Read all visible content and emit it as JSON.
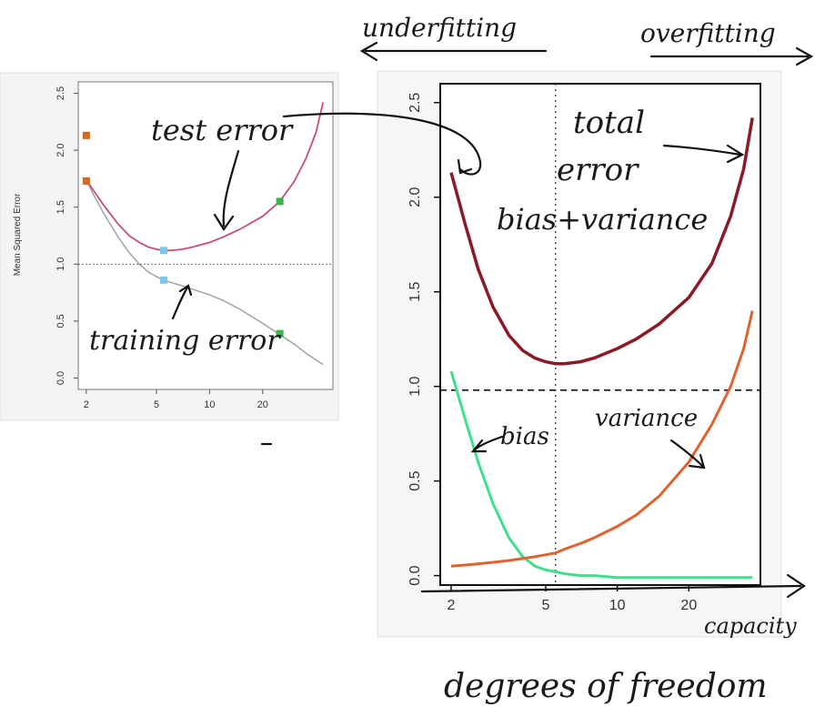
{
  "annotations": {
    "underfitting": "underfitting",
    "overfitting": "overfitting",
    "test_error": "test error",
    "training_error": "training error",
    "total_error_1": "total",
    "total_error_2": "error",
    "bias_variance": "bias+variance",
    "bias": "bias",
    "variance": "variance",
    "capacity": "capacity",
    "degrees_of_freedom": "degrees of freedom"
  },
  "colors": {
    "test_curve": "#c7506e",
    "train_curve": "#9aa5a0",
    "total_curve": "#8b1a24",
    "bias_curve": "#3ee08a",
    "variance_curve": "#e0622e",
    "orange_point": "#d2691e",
    "blue_point": "#7cc7e8",
    "green_point": "#3cb44b"
  },
  "chart_data": [
    {
      "type": "line",
      "ylabel": "Mean Squared Error",
      "xlabel": "",
      "x_scale": "log",
      "xlim": [
        1.8,
        50
      ],
      "ylim": [
        -0.1,
        2.6
      ],
      "x_ticks": [
        2,
        5,
        10,
        20
      ],
      "y_ticks": [
        0.0,
        0.5,
        1.0,
        1.5,
        2.0,
        2.5
      ],
      "reference_line_y": 1.0,
      "series": [
        {
          "key": "test",
          "x": [
            2,
            2.5,
            3,
            3.5,
            4,
            4.5,
            5,
            5.5,
            6,
            7,
            8,
            10,
            12,
            15,
            20,
            25,
            30,
            35,
            40,
            44
          ],
          "y": [
            1.74,
            1.52,
            1.36,
            1.25,
            1.19,
            1.15,
            1.13,
            1.12,
            1.12,
            1.13,
            1.15,
            1.19,
            1.24,
            1.31,
            1.42,
            1.55,
            1.72,
            1.92,
            2.15,
            2.42
          ]
        },
        {
          "key": "train",
          "x": [
            2,
            2.5,
            3,
            3.5,
            4,
            4.5,
            5,
            5.5,
            6,
            7,
            8,
            10,
            12,
            15,
            20,
            25,
            30,
            35,
            40,
            44
          ],
          "y": [
            1.73,
            1.45,
            1.25,
            1.1,
            1.0,
            0.93,
            0.89,
            0.86,
            0.84,
            0.81,
            0.78,
            0.73,
            0.68,
            0.6,
            0.48,
            0.38,
            0.3,
            0.22,
            0.16,
            0.12
          ]
        }
      ],
      "points": [
        {
          "x": 2,
          "y": 2.13,
          "color": "#d2691e"
        },
        {
          "x": 2,
          "y": 1.73,
          "color": "#d2691e"
        },
        {
          "x": 5.5,
          "y": 1.12,
          "color": "#7cc7e8"
        },
        {
          "x": 5.5,
          "y": 0.86,
          "color": "#7cc7e8"
        },
        {
          "x": 25,
          "y": 1.55,
          "color": "#3cb44b"
        },
        {
          "x": 25,
          "y": 0.39,
          "color": "#3cb44b"
        }
      ]
    },
    {
      "type": "line",
      "xlabel": "",
      "ylabel": "",
      "x_scale": "log",
      "xlim": [
        1.8,
        40
      ],
      "ylim": [
        -0.05,
        2.6
      ],
      "x_ticks": [
        2,
        5,
        10,
        20
      ],
      "y_ticks": [
        0.0,
        0.5,
        1.0,
        1.5,
        2.0,
        2.5
      ],
      "reference_line_y": 0.98,
      "vertical_line_x": 5.5,
      "series": [
        {
          "key": "total",
          "x": [
            2,
            2.3,
            2.6,
            3,
            3.5,
            4,
            4.5,
            5,
            5.5,
            6,
            7,
            8,
            10,
            12,
            15,
            20,
            25,
            30,
            34,
            37
          ],
          "y": [
            2.13,
            1.85,
            1.62,
            1.42,
            1.27,
            1.19,
            1.15,
            1.13,
            1.12,
            1.12,
            1.13,
            1.15,
            1.2,
            1.25,
            1.33,
            1.47,
            1.65,
            1.9,
            2.15,
            2.42
          ]
        },
        {
          "key": "bias",
          "x": [
            2,
            2.3,
            2.6,
            3,
            3.5,
            4,
            4.5,
            5,
            5.5,
            6,
            7,
            8,
            10,
            12,
            15,
            20,
            25,
            30,
            34,
            37
          ],
          "y": [
            1.08,
            0.82,
            0.6,
            0.38,
            0.2,
            0.1,
            0.05,
            0.03,
            0.02,
            0.01,
            0.0,
            0.0,
            -0.01,
            -0.01,
            -0.01,
            -0.01,
            -0.01,
            -0.01,
            -0.01,
            -0.01
          ]
        },
        {
          "key": "variance",
          "x": [
            2,
            2.5,
            3,
            3.5,
            4,
            4.5,
            5,
            5.5,
            6,
            7,
            8,
            10,
            12,
            15,
            20,
            25,
            30,
            34,
            37
          ],
          "y": [
            0.05,
            0.06,
            0.07,
            0.08,
            0.09,
            0.1,
            0.11,
            0.12,
            0.14,
            0.17,
            0.2,
            0.26,
            0.32,
            0.42,
            0.6,
            0.8,
            1.0,
            1.2,
            1.4
          ]
        }
      ]
    }
  ]
}
